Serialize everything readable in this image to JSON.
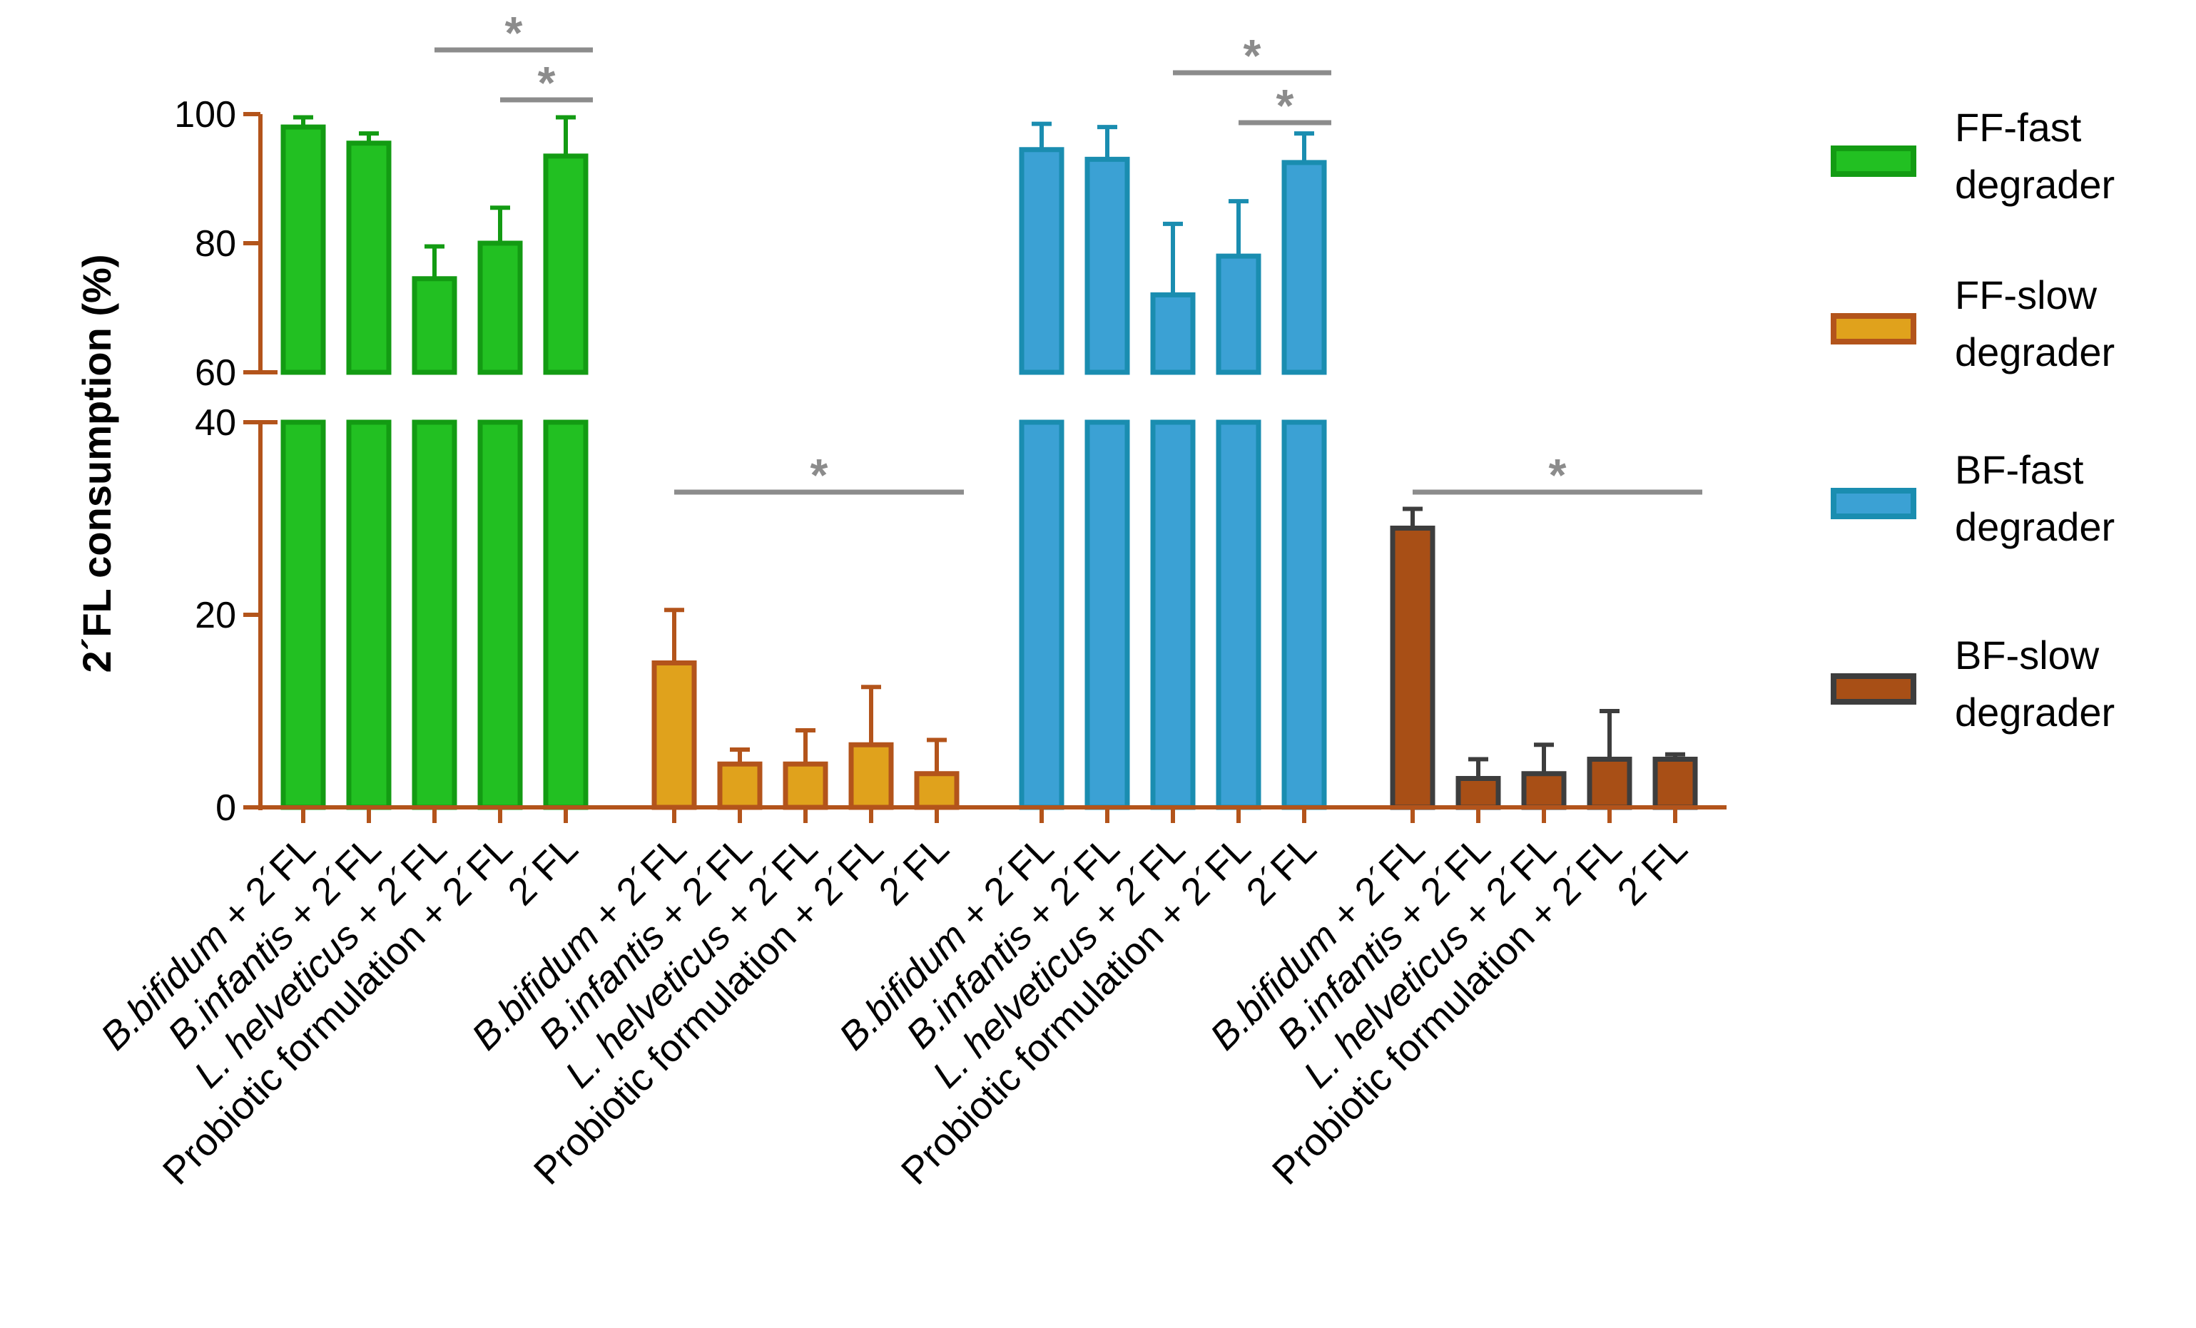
{
  "chart_data": {
    "type": "bar",
    "ylabel": "2´FL consumption (%)",
    "axis_break": {
      "lower_range": [
        0,
        40
      ],
      "upper_range": [
        60,
        100
      ]
    },
    "yticks_lower": [
      0,
      20,
      40
    ],
    "yticks_upper": [
      60,
      80,
      100
    ],
    "categories": [
      {
        "italic": "B.bifidum",
        "rest": " + 2´FL"
      },
      {
        "italic": "B.infantis",
        "rest": " + 2´FL"
      },
      {
        "italic": "L. helveticus",
        "rest": " + 2´FL"
      },
      {
        "italic": "",
        "rest": "Probiotic formulation + 2´FL"
      },
      {
        "italic": "",
        "rest": "2´FL"
      }
    ],
    "series": [
      {
        "name": "FF-fast degrader",
        "legend_line1": "FF-fast",
        "legend_line2": "degrader",
        "fill": "#22c022",
        "stroke": "#139b13",
        "values": [
          98,
          95.5,
          74.5,
          80,
          93.5
        ],
        "errors": [
          1.5,
          1.5,
          5,
          5.5,
          6
        ],
        "significance_stars": [
          "*",
          "*"
        ]
      },
      {
        "name": "FF-slow degrader",
        "legend_line1": "FF-slow",
        "legend_line2": "degrader",
        "fill": "#e0a21c",
        "stroke": "#b3541b",
        "values": [
          15,
          4.5,
          4.5,
          6.5,
          3.5
        ],
        "errors": [
          5.5,
          1.5,
          3.5,
          6,
          3.5
        ],
        "significance_stars": [
          "*"
        ]
      },
      {
        "name": "BF-fast degrader",
        "legend_line1": "BF-fast",
        "legend_line2": "degrader",
        "fill": "#3ba1d4",
        "stroke": "#1a8db0",
        "values": [
          94.5,
          93,
          72,
          78,
          92.5
        ],
        "errors": [
          4,
          5,
          11,
          8.5,
          4.5
        ],
        "significance_stars": [
          "*",
          "*"
        ]
      },
      {
        "name": "BF-slow degrader",
        "legend_line1": "BF-slow",
        "legend_line2": "degrader",
        "fill": "#a84f16",
        "stroke": "#3d3d3d",
        "values": [
          29,
          3,
          3.5,
          5,
          5
        ],
        "errors": [
          2,
          2,
          3,
          5,
          0.5
        ],
        "significance_stars": [
          "*"
        ]
      }
    ]
  }
}
